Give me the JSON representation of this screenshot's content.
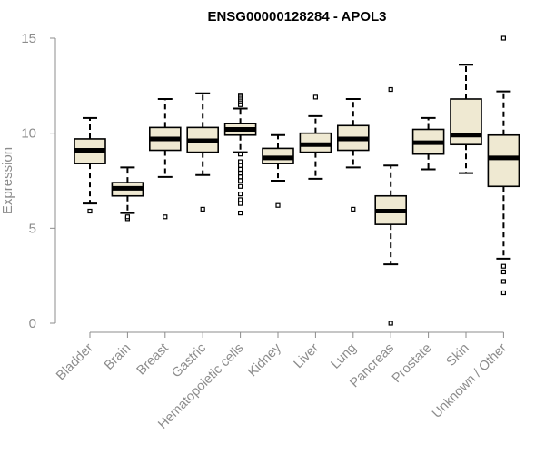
{
  "chart_data": {
    "type": "box",
    "title": "ENSG00000128284 - APOL3",
    "xlabel": "",
    "ylabel": "Expression",
    "ylim": [
      0,
      15
    ],
    "yticks": [
      0,
      5,
      10,
      15
    ],
    "grid": false,
    "colors": {
      "box_fill": "#efe9d2",
      "stroke": "#000000",
      "axis": "#8c8c8c"
    },
    "categories": [
      "Bladder",
      "Brain",
      "Breast",
      "Gastric",
      "Hematopoietic cells",
      "Kidney",
      "Liver",
      "Lung",
      "Pancreas",
      "Prostate",
      "Skin",
      "Unknown / Other"
    ],
    "boxes": [
      {
        "category": "Bladder",
        "whisker_low": 6.3,
        "q1": 8.4,
        "median": 9.1,
        "q3": 9.7,
        "whisker_high": 10.8,
        "outliers": [
          5.9
        ]
      },
      {
        "category": "Brain",
        "whisker_low": 5.8,
        "q1": 6.7,
        "median": 7.1,
        "q3": 7.4,
        "whisker_high": 8.2,
        "outliers": [
          5.5,
          5.6
        ]
      },
      {
        "category": "Breast",
        "whisker_low": 7.7,
        "q1": 9.1,
        "median": 9.7,
        "q3": 10.3,
        "whisker_high": 11.8,
        "outliers": [
          5.6
        ]
      },
      {
        "category": "Gastric",
        "whisker_low": 7.8,
        "q1": 9.0,
        "median": 9.6,
        "q3": 10.3,
        "whisker_high": 12.1,
        "outliers": [
          6.0
        ]
      },
      {
        "category": "Hematopoietic cells",
        "whisker_low": 9.0,
        "q1": 9.9,
        "median": 10.2,
        "q3": 10.5,
        "whisker_high": 11.3,
        "outliers": [
          12.0,
          11.9,
          11.8,
          11.7,
          11.6,
          11.5,
          8.9,
          8.5,
          8.3,
          8.1,
          7.9,
          7.7,
          7.5,
          7.2,
          6.8,
          6.5,
          6.3,
          5.8
        ]
      },
      {
        "category": "Kidney",
        "whisker_low": 7.5,
        "q1": 8.4,
        "median": 8.7,
        "q3": 9.2,
        "whisker_high": 9.9,
        "outliers": [
          6.2
        ]
      },
      {
        "category": "Liver",
        "whisker_low": 7.6,
        "q1": 9.0,
        "median": 9.4,
        "q3": 10.0,
        "whisker_high": 10.9,
        "outliers": [
          11.9
        ]
      },
      {
        "category": "Lung",
        "whisker_low": 8.2,
        "q1": 9.1,
        "median": 9.7,
        "q3": 10.4,
        "whisker_high": 11.8,
        "outliers": [
          6.0
        ]
      },
      {
        "category": "Pancreas",
        "whisker_low": 3.1,
        "q1": 5.2,
        "median": 5.9,
        "q3": 6.7,
        "whisker_high": 8.3,
        "outliers": [
          12.3,
          0.0
        ]
      },
      {
        "category": "Prostate",
        "whisker_low": 8.1,
        "q1": 8.9,
        "median": 9.5,
        "q3": 10.2,
        "whisker_high": 10.8,
        "outliers": []
      },
      {
        "category": "Skin",
        "whisker_low": 7.9,
        "q1": 9.4,
        "median": 9.9,
        "q3": 11.8,
        "whisker_high": 13.6,
        "outliers": []
      },
      {
        "category": "Unknown / Other",
        "whisker_low": 3.4,
        "q1": 7.2,
        "median": 8.7,
        "q3": 9.9,
        "whisker_high": 12.2,
        "outliers": [
          15.0,
          3.0,
          2.7,
          2.2,
          1.6
        ]
      }
    ]
  }
}
